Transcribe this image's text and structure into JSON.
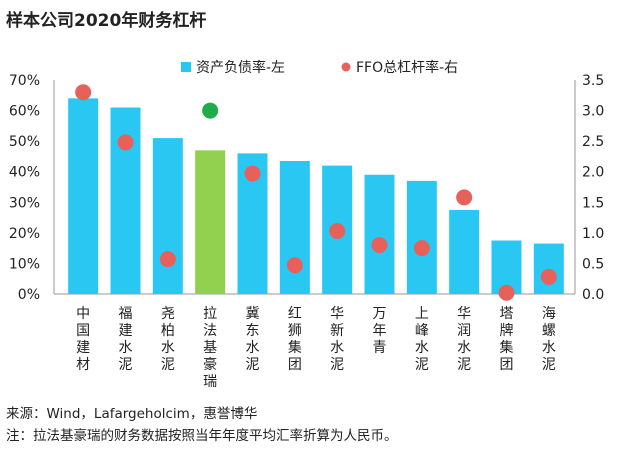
{
  "title": "样本公司2020年财务杠杆",
  "source": "来源：Wind，Lafargeholcim，惠誉博华",
  "note": "注：拉法基豪瑞的财务数据按照当年年度平均汇率折算为人民币。",
  "colors": {
    "bar": "#29c7f2",
    "bar_highlight": "#92d14f",
    "dot": "#e8605a",
    "dot_highlight": "#1fac4a",
    "axis": "#999999"
  },
  "chart_data": {
    "type": "bar+scatter",
    "title": "样本公司2020年财务杠杆",
    "categories": [
      "中国建材",
      "福建水泥",
      "尧柏水泥",
      "拉法基豪瑞",
      "冀东水泥",
      "红狮集团",
      "华新水泥",
      "万年青",
      "上峰水泥",
      "华润水泥",
      "塔牌集团",
      "海螺水泥"
    ],
    "highlight_index": 3,
    "series": [
      {
        "name": "资产负债率-左",
        "type": "bar",
        "axis": "left",
        "values": [
          64,
          61,
          51,
          47,
          46,
          43.5,
          42,
          39,
          37,
          27.5,
          17.5,
          16.5
        ]
      },
      {
        "name": "FFO总杠杆率-右",
        "type": "scatter",
        "axis": "right",
        "values": [
          3.3,
          2.48,
          0.57,
          3.0,
          1.97,
          0.47,
          1.03,
          0.8,
          0.75,
          1.58,
          0.02,
          0.28
        ]
      }
    ],
    "y_left": {
      "min": 0,
      "max": 70,
      "step": 10,
      "tick_labels": [
        "0%",
        "10%",
        "20%",
        "30%",
        "40%",
        "50%",
        "60%",
        "70%"
      ]
    },
    "y_right": {
      "min": 0,
      "max": 3.5,
      "step": 0.5,
      "tick_labels": [
        "0.0",
        "0.5",
        "1.0",
        "1.5",
        "2.0",
        "2.5",
        "3.0",
        "3.5"
      ]
    },
    "legend_position": "top",
    "grid": false
  }
}
